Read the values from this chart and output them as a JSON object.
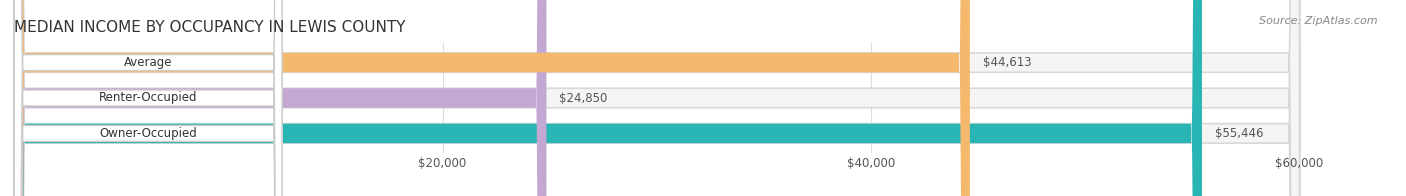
{
  "title": "MEDIAN INCOME BY OCCUPANCY IN LEWIS COUNTY",
  "source": "Source: ZipAtlas.com",
  "categories": [
    "Owner-Occupied",
    "Renter-Occupied",
    "Average"
  ],
  "values": [
    55446,
    24850,
    44613
  ],
  "labels": [
    "$55,446",
    "$24,850",
    "$44,613"
  ],
  "bar_colors": [
    "#2ab5b5",
    "#c4a8d4",
    "#f5b96e"
  ],
  "bar_edge_colors": [
    "#2ab5b5",
    "#c4a8d4",
    "#f5b96e"
  ],
  "bg_bar_color": "#f0f0f0",
  "xlim": [
    0,
    60000
  ],
  "xticks": [
    0,
    20000,
    40000,
    60000
  ],
  "xticklabels": [
    "$20,000",
    "$40,000",
    "$60,000"
  ],
  "figsize": [
    14.06,
    1.96
  ],
  "dpi": 100,
  "title_fontsize": 11,
  "label_fontsize": 8.5,
  "bar_label_fontsize": 8.5,
  "tick_fontsize": 8.5,
  "source_fontsize": 8
}
